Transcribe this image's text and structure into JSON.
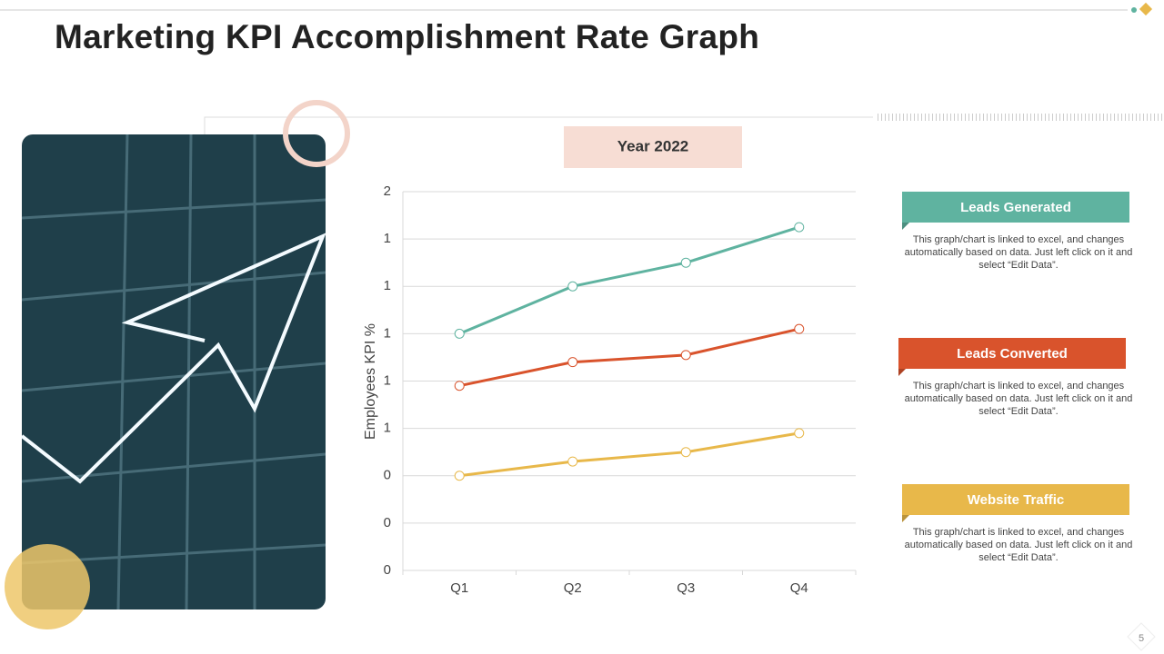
{
  "slide_title": "Marketing KPI Accomplishment Rate Graph",
  "page_number": "5",
  "chart_data": {
    "type": "line",
    "title": "Year 2022",
    "y_label": "Employees KPI %",
    "categories": [
      "Q1",
      "Q2",
      "Q3",
      "Q4"
    ],
    "series": [
      {
        "name": "Leads Generated",
        "color": "#5fb3a0",
        "values": [
          1.0,
          1.2,
          1.3,
          1.45
        ]
      },
      {
        "name": "Leads Converted",
        "color": "#d9532c",
        "values": [
          0.78,
          0.88,
          0.91,
          1.02
        ]
      },
      {
        "name": "Website Traffic",
        "color": "#e8b84a",
        "values": [
          0.4,
          0.46,
          0.5,
          0.58
        ]
      }
    ],
    "ylim": [
      0,
      1.6
    ],
    "yticks": [
      {
        "value": 0,
        "label": "0"
      },
      {
        "value": 0.2,
        "label": "0"
      },
      {
        "value": 0.4,
        "label": "0"
      },
      {
        "value": 0.6,
        "label": "1"
      },
      {
        "value": 0.8,
        "label": "1"
      },
      {
        "value": 1.0,
        "label": "1"
      },
      {
        "value": 1.2,
        "label": "1"
      },
      {
        "value": 1.4,
        "label": "1"
      },
      {
        "value": 1.6,
        "label": "2"
      }
    ],
    "grid": true
  },
  "series_notes": [
    "This graph/chart is linked to excel, and changes automatically based on data. Just left click on it and select “Edit Data”.",
    "This graph/chart is linked to excel, and changes automatically based on data. Just left click on it and select “Edit Data”.",
    "This graph/chart is linked to excel, and changes automatically based on data. Just left click on it and select “Edit Data”."
  ]
}
